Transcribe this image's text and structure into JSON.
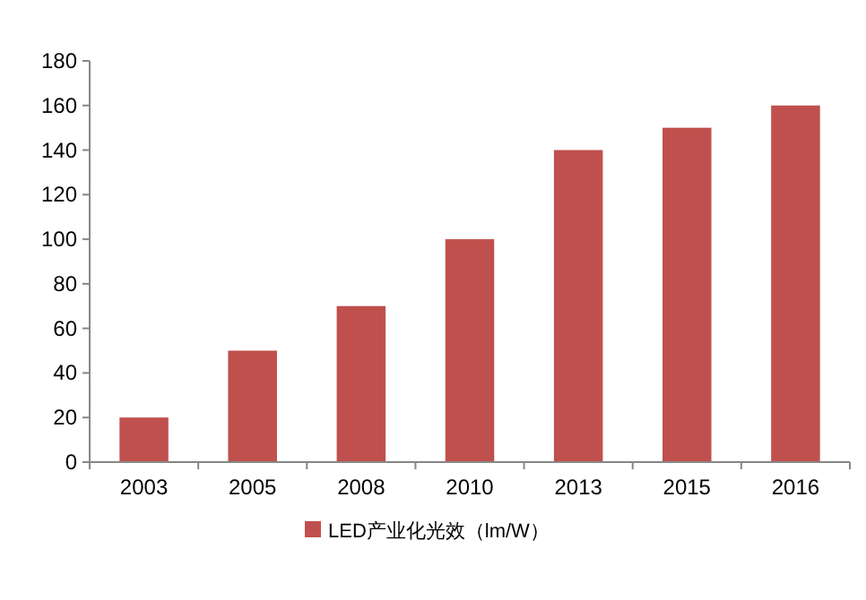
{
  "chart_data": {
    "type": "bar",
    "categories": [
      "2003",
      "2005",
      "2008",
      "2010",
      "2013",
      "2015",
      "2016"
    ],
    "series": [
      {
        "name": "LED产业化光效（lm/W）",
        "color": "#c0504d",
        "values": [
          20,
          50,
          70,
          100,
          140,
          150,
          160
        ]
      }
    ],
    "ylim": [
      0,
      180
    ],
    "yticks": [
      0,
      20,
      40,
      60,
      80,
      100,
      120,
      140,
      160,
      180
    ],
    "grid": false,
    "legend": "bottom"
  }
}
